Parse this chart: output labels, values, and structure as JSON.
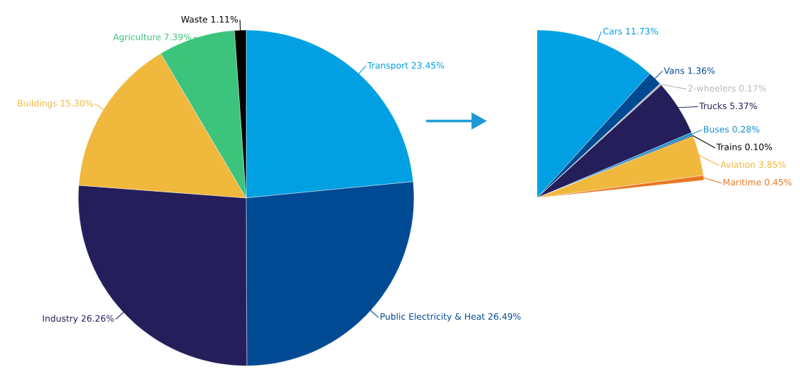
{
  "chart_data": [
    {
      "type": "pie",
      "categories": [
        "Transport",
        "Public Electricity & Heat",
        "Industry",
        "Buildings",
        "Agriculture",
        "Waste"
      ],
      "values": [
        23.45,
        26.49,
        26.26,
        15.3,
        7.39,
        1.11
      ],
      "colors": [
        "#00a0e3",
        "#004a93",
        "#241f5b",
        "#f0b83c",
        "#3cc47c",
        "#000000"
      ],
      "value_labels": [
        "23.45%",
        "26.49%",
        "26.26%",
        "15.30%",
        "7.39%",
        "1.11%"
      ]
    },
    {
      "type": "pie",
      "categories": [
        "Cars",
        "Vans",
        "2-wheelers",
        "Trucks",
        "Buses",
        "Trains",
        "Aviation",
        "Maritime"
      ],
      "values": [
        11.73,
        1.36,
        0.17,
        5.37,
        0.28,
        0.1,
        3.85,
        0.45
      ],
      "colors": [
        "#00a0e3",
        "#004a93",
        "#b8b8b8",
        "#241f5b",
        "#1a8fd0",
        "#000000",
        "#f0b83c",
        "#e87722"
      ],
      "value_labels": [
        "11.73%",
        "1.36%",
        "0.17%",
        "5.37%",
        "0.28%",
        "0.10%",
        "3.85%",
        "0.45%"
      ]
    }
  ]
}
